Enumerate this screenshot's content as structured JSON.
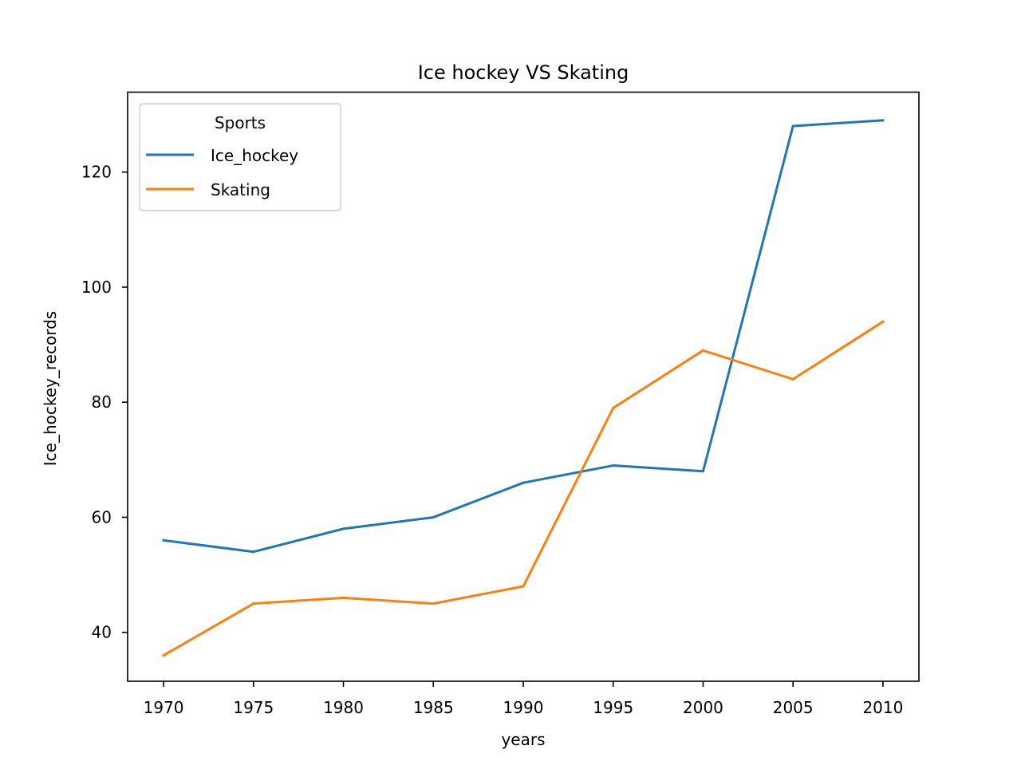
{
  "chart_data": {
    "type": "line",
    "title": "Ice hockey VS Skating",
    "xlabel": "years",
    "ylabel": "Ice_hockey_records",
    "x": [
      1970,
      1975,
      1980,
      1985,
      1990,
      1995,
      2000,
      2005,
      2010
    ],
    "xticks": [
      "1970",
      "1975",
      "1980",
      "1985",
      "1990",
      "1995",
      "2000",
      "2005",
      "2010"
    ],
    "yticks": [
      40,
      60,
      80,
      100,
      120
    ],
    "xlim": [
      1968,
      2012
    ],
    "ylim": [
      31.5,
      133.9
    ],
    "grid": false,
    "legend": {
      "title": "Sports",
      "placement": "top-left"
    },
    "series": [
      {
        "name": "Ice_hockey",
        "color": "#1f77b4",
        "values": [
          56,
          54,
          58,
          60,
          66,
          69,
          68,
          128,
          129
        ]
      },
      {
        "name": "Skating",
        "color": "#ff7f0e",
        "values": [
          36,
          45,
          46,
          45,
          48,
          79,
          89,
          84,
          94
        ]
      }
    ]
  }
}
